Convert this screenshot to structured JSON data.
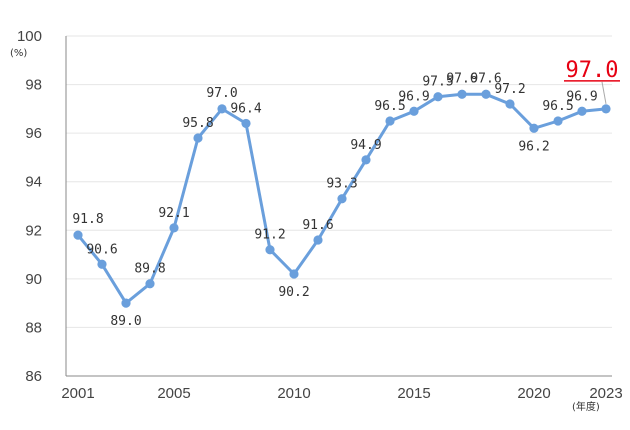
{
  "chart_data": {
    "type": "line",
    "x": [
      2001,
      2002,
      2003,
      2004,
      2005,
      2006,
      2007,
      2008,
      2009,
      2010,
      2011,
      2012,
      2013,
      2014,
      2015,
      2016,
      2017,
      2018,
      2019,
      2020,
      2021,
      2022,
      2023
    ],
    "series": [
      {
        "values": [
          91.8,
          90.6,
          89.0,
          89.8,
          92.1,
          95.8,
          97.0,
          96.4,
          91.2,
          90.2,
          91.6,
          93.3,
          94.9,
          96.5,
          96.9,
          97.5,
          97.6,
          97.6,
          97.2,
          96.2,
          96.5,
          96.9,
          97.0
        ],
        "labels": [
          "91.8",
          "90.6",
          "89.0",
          "89.8",
          "92.1",
          "95.8",
          "97.0",
          "96.4",
          "91.2",
          "90.2",
          "91.6",
          "93.3",
          "94.9",
          "96.5",
          "96.9",
          "97.5",
          "97.6",
          "97.6",
          "97.2",
          "96.2",
          "96.5",
          "96.9",
          "97.0"
        ],
        "color": "#6a9fdc"
      }
    ],
    "ylim": [
      86,
      100
    ],
    "y_ticks": [
      "86",
      "88",
      "90",
      "92",
      "94",
      "96",
      "98",
      "100"
    ],
    "x_ticks": [
      "2001",
      "2005",
      "2010",
      "2015",
      "2020",
      "2023"
    ],
    "ylabel": "(%)",
    "xlabel": "(年度)",
    "grid": true,
    "highlight_color": "#e60012"
  }
}
